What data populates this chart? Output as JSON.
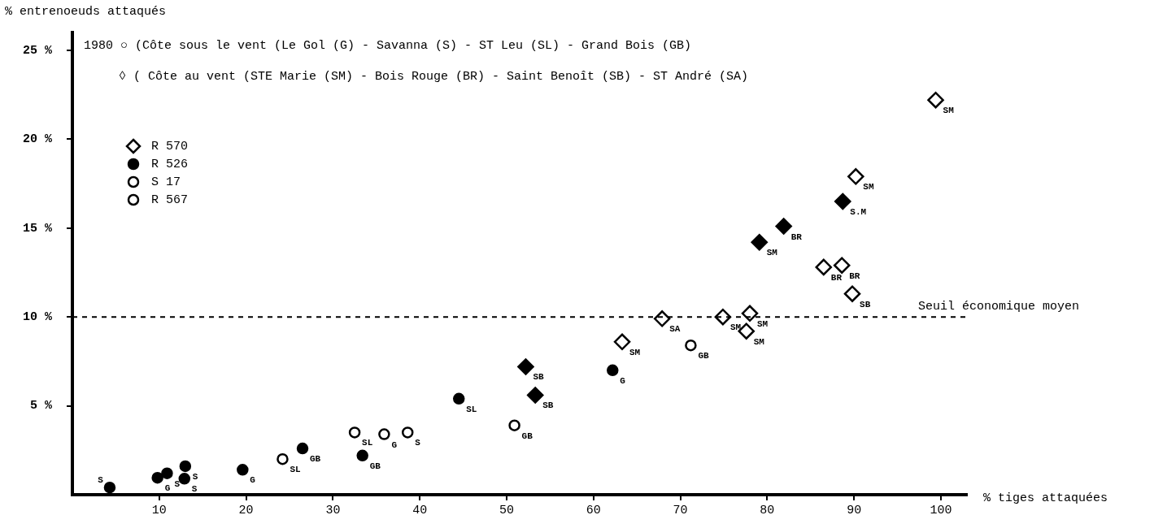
{
  "chart_data": {
    "type": "scatter",
    "xlabel": "% tiges attaquées",
    "ylabel": "% entrenoeuds attaqués",
    "xlim": [
      0,
      103
    ],
    "ylim": [
      0,
      26
    ],
    "xticks": [
      10,
      20,
      30,
      40,
      50,
      60,
      70,
      80,
      90,
      100
    ],
    "yticks": [
      {
        "value": 5,
        "label": "5 %"
      },
      {
        "value": 10,
        "label": "10 %"
      },
      {
        "value": 15,
        "label": "15 %"
      },
      {
        "value": 20,
        "label": "20 %"
      },
      {
        "value": 25,
        "label": "25 %"
      }
    ],
    "grid": false,
    "legend": "top left",
    "series": [
      {
        "name": "R 570",
        "marker": "diamond",
        "color": "#000000",
        "colors": [
          "#ffffff",
          "#ffffff",
          "#ffffff",
          "#ffffff",
          "#ffffff"
        ],
        "x": [
          88.6,
          89.8,
          67.9,
          63.3,
          77.6
        ],
        "values": [
          12.9,
          11.3,
          9.9,
          8.6,
          9.2
        ]
      },
      {
        "name": "R 526",
        "marker": "circle",
        "color": "#000000",
        "colors": [
          "#000000",
          "#000000",
          "#000000",
          "#000000",
          "#000000",
          "#000000",
          "#000000",
          "#000000",
          "#000000",
          "#000000"
        ],
        "x": [
          4.3,
          9.8,
          10.9,
          13.0,
          12.9,
          19.6,
          26.5,
          33.4,
          44.5,
          62.2
        ],
        "values": [
          0.4,
          0.95,
          1.2,
          1.6,
          0.9,
          1.4,
          2.6,
          2.2,
          5.4,
          7.0
        ]
      },
      {
        "name": "S 17",
        "marker": "circle",
        "color": "#000000",
        "colors": [
          "#ffffff",
          "#ffffff",
          "#ffffff"
        ],
        "x": [
          24.2,
          38.6,
          71.2
        ],
        "values": [
          2.0,
          3.5,
          8.4
        ]
      },
      {
        "name": "R 567",
        "marker": "circle",
        "color": "#000000",
        "colors": [
          "#ffffff",
          "#ffffff",
          "#ffffff"
        ],
        "x": [
          32.5,
          35.9,
          50.9
        ],
        "values": [
          3.5,
          3.4,
          3.9
        ]
      },
      {
        "marker": "diamond",
        "color": "#000000",
        "colors": [
          "#000000",
          "#000000",
          "#000000",
          "#000000",
          "#000000"
        ],
        "x": [
          52.2,
          53.3,
          79.1,
          81.9,
          88.7
        ],
        "values": [
          7.2,
          5.6,
          14.2,
          15.1,
          16.5
        ]
      },
      {
        "marker": "diamond",
        "color": "#000000",
        "colors": [
          "#ffffff",
          "#ffffff",
          "#ffffff"
        ],
        "x": [
          99.4,
          90.2,
          86.5
        ],
        "values": [
          22.2,
          17.9,
          12.8
        ]
      },
      {
        "marker": "diamond",
        "color": "#000000",
        "colors": [
          "#ffffff",
          "#ffffff"
        ],
        "x": [
          74.9,
          78.0
        ],
        "values": [
          10.0,
          10.2
        ]
      }
    ],
    "ref_lines": [
      {
        "axis": "y",
        "value": 10,
        "label": "Seuil économique moyen",
        "line_style": "dashed",
        "color": "#000000"
      }
    ],
    "annotations": [
      "1980 ○ (Côte sous le vent (Le Gol (G) - Savanna (S) - ST Leu (SL) - Grand Bois (GB)",
      "◊ ( Côte au vent (STE Marie (SM) - Bois Rouge (BR) - Saint Benoît (SB) - ST André (SA)",
      {
        "text": "S",
        "x": 4.3,
        "y": 0.4
      },
      {
        "text": "G",
        "x": 9.8,
        "y": 0.95
      },
      {
        "text": "S",
        "x": 10.9,
        "y": 1.2
      },
      {
        "text": "S",
        "x": 13.0,
        "y": 1.6
      },
      {
        "text": "S",
        "x": 12.9,
        "y": 0.9
      },
      {
        "text": "G",
        "x": 19.6,
        "y": 1.4
      },
      {
        "text": "GB",
        "x": 26.5,
        "y": 2.6
      },
      {
        "text": "GB",
        "x": 33.4,
        "y": 2.2
      },
      {
        "text": "SL",
        "x": 44.5,
        "y": 5.4
      },
      {
        "text": "G",
        "x": 62.2,
        "y": 7.0
      },
      {
        "text": "SL",
        "x": 24.2,
        "y": 2.0
      },
      {
        "text": "S",
        "x": 38.6,
        "y": 3.5
      },
      {
        "text": "GB",
        "x": 71.2,
        "y": 8.4
      },
      {
        "text": "SL",
        "x": 32.5,
        "y": 3.5
      },
      {
        "text": "G",
        "x": 35.9,
        "y": 3.4
      },
      {
        "text": "GB",
        "x": 50.9,
        "y": 3.9
      },
      {
        "text": "SB",
        "x": 52.2,
        "y": 7.2
      },
      {
        "text": "SB",
        "x": 53.3,
        "y": 5.6
      },
      {
        "text": "SM",
        "x": 79.1,
        "y": 14.2
      },
      {
        "text": "BR",
        "x": 81.9,
        "y": 15.1
      },
      {
        "text": "S.M",
        "x": 88.7,
        "y": 16.5
      },
      {
        "text": "SM",
        "x": 99.4,
        "y": 22.2
      },
      {
        "text": "SM",
        "x": 90.2,
        "y": 17.9
      },
      {
        "text": "BR",
        "x": 86.5,
        "y": 12.8
      },
      {
        "text": "BR",
        "x": 88.6,
        "y": 12.9
      },
      {
        "text": "SB",
        "x": 89.8,
        "y": 11.3
      },
      {
        "text": "SA",
        "x": 67.9,
        "y": 9.9
      },
      {
        "text": "SM",
        "x": 63.3,
        "y": 8.6
      },
      {
        "text": "SM",
        "x": 77.6,
        "y": 9.2
      },
      {
        "text": "SM",
        "x": 74.9,
        "y": 10.0
      },
      {
        "text": "SM",
        "x": 78.0,
        "y": 10.2
      }
    ]
  }
}
